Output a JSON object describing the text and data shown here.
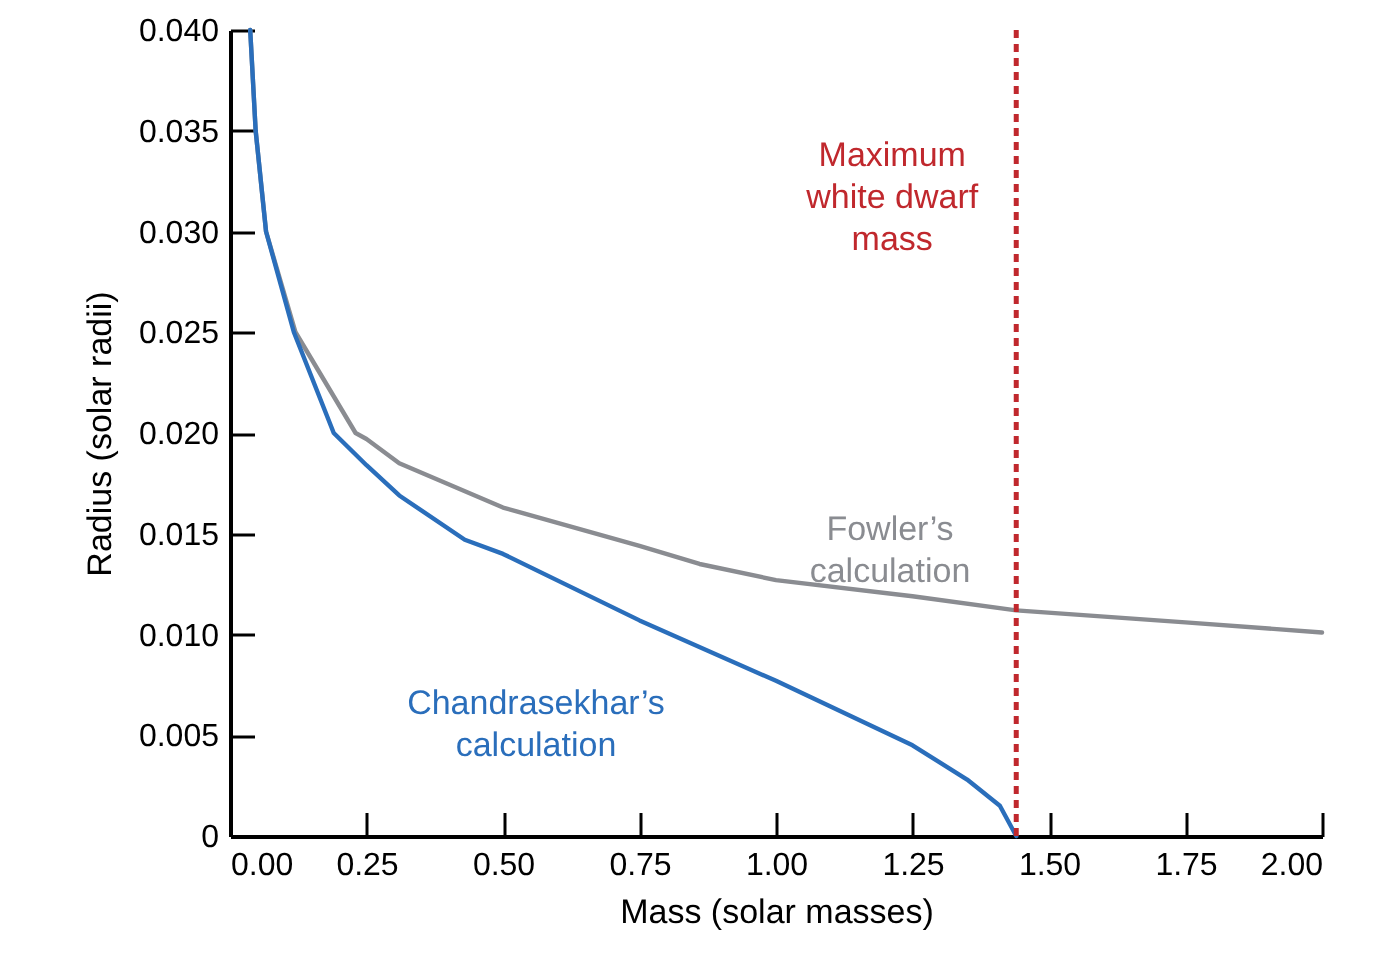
{
  "chart_data": {
    "type": "line",
    "xlabel": "Mass (solar masses)",
    "ylabel": "Radius (solar radii)",
    "xlim": [
      0,
      2
    ],
    "ylim": [
      0,
      0.04
    ],
    "xticks": [
      {
        "value": 0,
        "label": "0.00"
      },
      0.25,
      {
        "value": 0.5,
        "label": "0.50"
      },
      0.75,
      {
        "value": 1,
        "label": "1.00"
      },
      1.25,
      {
        "value": 1.5,
        "label": "1.50"
      },
      1.75,
      {
        "value": 2,
        "label": "2.00"
      }
    ],
    "yticks": [
      0,
      0.005,
      {
        "value": 0.01,
        "label": "0.010"
      },
      0.015,
      {
        "value": 0.02,
        "label": "0.020"
      },
      0.025,
      {
        "value": 0.03,
        "label": "0.030"
      },
      0.035,
      {
        "value": 0.04,
        "label": "0.040"
      }
    ],
    "marker": "none",
    "line_style": "solid",
    "series": [
      {
        "name": "Fowler’s calculation",
        "color": "#8a8c91",
        "x": [
          0.037,
          0.047,
          0.066,
          0.12,
          0.23,
          0.25,
          0.31,
          0.5,
          0.75,
          0.86,
          1.0,
          1.25,
          1.44,
          1.75,
          2.0
        ],
        "values": [
          0.04,
          0.035,
          0.03,
          0.025,
          0.02,
          0.0197,
          0.0185,
          0.0163,
          0.0144,
          0.0135,
          0.0127,
          0.0119,
          0.0112,
          0.0106,
          0.0101
        ]
      },
      {
        "name": "Chandrasekhar’s calculation",
        "color": "#2a6ebb",
        "x": [
          0.037,
          0.047,
          0.066,
          0.117,
          0.19,
          0.25,
          0.31,
          0.43,
          0.5,
          0.75,
          1.0,
          1.25,
          1.35,
          1.41,
          1.44
        ],
        "values": [
          0.04,
          0.035,
          0.03,
          0.025,
          0.02,
          0.0184,
          0.0169,
          0.0147,
          0.014,
          0.0107,
          0.0077,
          0.0045,
          0.0028,
          0.0015,
          0
        ]
      }
    ],
    "ref_lines": [
      {
        "axis": "x",
        "value": 1.44,
        "label": "Maximum white dwarf mass",
        "color": "#c0282d",
        "line_style": "dashed"
      }
    ]
  }
}
